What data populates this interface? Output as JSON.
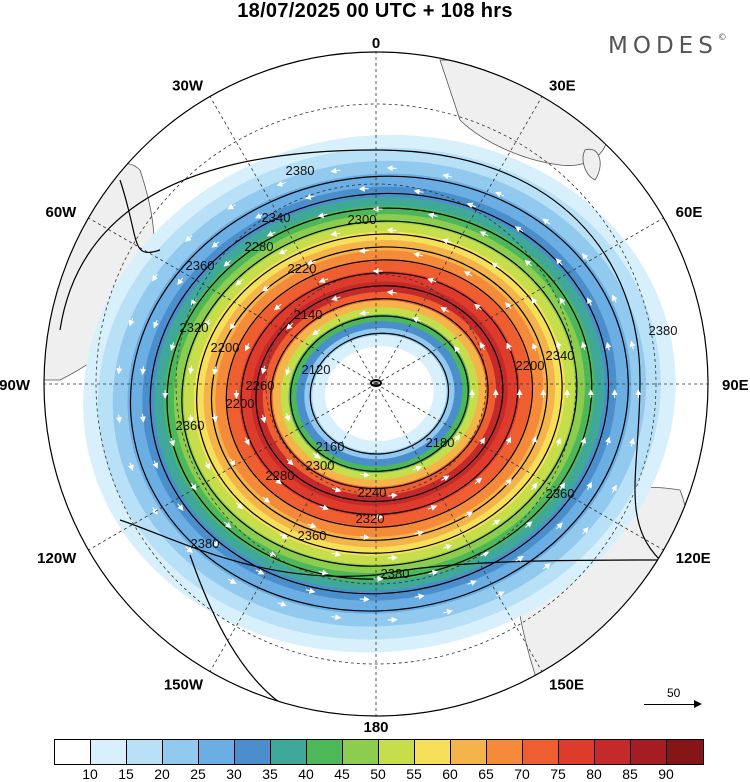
{
  "title": "18/07/2025  00 UTC  + 108 hrs",
  "brand": "MODES",
  "brand_mark": "©",
  "longitude_labels": [
    {
      "text": "0",
      "lon": 0
    },
    {
      "text": "30E",
      "lon": 30
    },
    {
      "text": "60E",
      "lon": 60
    },
    {
      "text": "90E",
      "lon": 90
    },
    {
      "text": "120E",
      "lon": 120
    },
    {
      "text": "150E",
      "lon": 150
    },
    {
      "text": "180",
      "lon": 180
    },
    {
      "text": "150W",
      "lon": -150
    },
    {
      "text": "120W",
      "lon": -120
    },
    {
      "text": "90W",
      "lon": -90
    },
    {
      "text": "60W",
      "lon": -60
    },
    {
      "text": "30W",
      "lon": -30
    }
  ],
  "contour_labels": [
    "2380",
    "2340",
    "2300",
    "2280",
    "2220",
    "2360",
    "2320",
    "2200",
    "2140",
    "2120",
    "2260",
    "2200",
    "2160",
    "2180",
    "2200",
    "2340",
    "2380",
    "2360",
    "2240",
    "2280",
    "2300",
    "2320",
    "2360",
    "2380",
    "2380",
    "2360"
  ],
  "reference_vector": {
    "label": "50"
  },
  "colorbar": {
    "ticks": [
      "10",
      "15",
      "20",
      "25",
      "30",
      "35",
      "40",
      "45",
      "50",
      "55",
      "60",
      "65",
      "70",
      "75",
      "80",
      "85",
      "90"
    ],
    "colors": [
      "#ffffff",
      "#d8f0fb",
      "#b8e1f7",
      "#92c9ef",
      "#6aaee3",
      "#4a8fcc",
      "#3fa899",
      "#4db85a",
      "#8ccc4e",
      "#c6dd4c",
      "#f6e05a",
      "#f5b44a",
      "#f48a3a",
      "#ef5e30",
      "#df3b2c",
      "#c42a2a",
      "#a51c22",
      "#861518"
    ]
  }
}
